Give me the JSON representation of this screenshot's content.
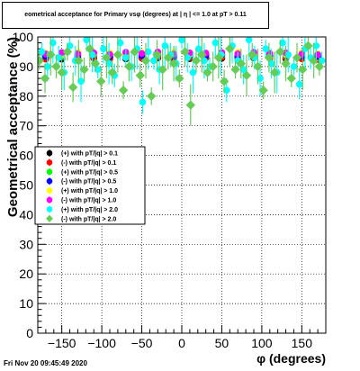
{
  "chart_data": {
    "type": "scatter",
    "title": "eometrical acceptance for Primary vsφ (degrees) at | η | <= 1.0 at pT > 0.11",
    "xlabel": "φ (degrees)",
    "ylabel": "Geometrical acceptance (%)",
    "xlim": [
      -180,
      180
    ],
    "ylim": [
      0,
      100
    ],
    "xticks": [
      -150,
      -100,
      -50,
      0,
      50,
      100,
      150
    ],
    "yticks": [
      0,
      10,
      20,
      30,
      40,
      50,
      60,
      70,
      80,
      90,
      100
    ],
    "grid": true,
    "legend_position": "middle-left",
    "series": [
      {
        "name": "(+) with pT/|q| > 0.1",
        "color": "#000000",
        "marker": "circle",
        "x": [
          -170,
          -150,
          -130,
          -110,
          -90,
          -70,
          -50,
          -30,
          -10,
          10,
          30,
          50,
          70,
          90,
          110,
          130,
          150,
          170
        ],
        "y": [
          93,
          92.5,
          93,
          92.8,
          93.2,
          92.6,
          93,
          92.9,
          93.1,
          92.7,
          93,
          92.8,
          93.2,
          92.9,
          93,
          92.6,
          93.1,
          92.8
        ]
      },
      {
        "name": "(-) with pT/|q| > 0.1",
        "color": "#ff0000",
        "marker": "circle",
        "x": [
          -170,
          -150,
          -130,
          -110,
          -90,
          -70,
          -50,
          -30,
          -10,
          10,
          30,
          50,
          70,
          90,
          110,
          130,
          150,
          170
        ],
        "y": [
          92.5,
          93.2,
          92.7,
          93,
          92.6,
          93.1,
          92.8,
          93.2,
          92.6,
          93,
          92.9,
          93.1,
          92.7,
          93.2,
          92.8,
          93,
          92.6,
          92.4
        ]
      },
      {
        "name": "(+) with pT/|q| > 0.5",
        "color": "#00ff00",
        "marker": "circle",
        "x": [
          -170,
          -150,
          -130,
          -110,
          -90,
          -70,
          -50,
          -30,
          -10,
          10,
          30,
          50,
          70,
          90,
          110,
          130,
          150,
          170
        ],
        "y": [
          94,
          93.5,
          94.2,
          93.8,
          94.1,
          93.6,
          94,
          93.9,
          94.3,
          93.7,
          94,
          93.8,
          94.2,
          93.9,
          94,
          93.6,
          94.1,
          93.8
        ]
      },
      {
        "name": "(-) with pT/|q| > 0.5",
        "color": "#0000ff",
        "marker": "circle",
        "x": [
          -170,
          -150,
          -130,
          -110,
          -90,
          -70,
          -50,
          -30,
          -10,
          10,
          30,
          50,
          70,
          90,
          110,
          130,
          150,
          170
        ],
        "y": [
          93.5,
          94,
          93.6,
          93.9,
          93.4,
          94,
          93.7,
          94.1,
          93.5,
          93.9,
          93.8,
          94,
          93.6,
          94.1,
          93.7,
          93.9,
          93.5,
          93.2
        ]
      },
      {
        "name": "(+) with pT/|q| > 1.0",
        "color": "#ffff00",
        "marker": "circle",
        "x": [
          -170,
          -150,
          -130,
          -110,
          -90,
          -70,
          -50,
          -30,
          -10,
          10,
          30,
          50,
          70,
          90,
          110,
          130,
          150,
          170
        ],
        "y": [
          94.5,
          94,
          94.8,
          94.2,
          94.6,
          94.1,
          94.7,
          94.3,
          94.9,
          94.2,
          94.6,
          94.4,
          94.8,
          94.3,
          94.6,
          94.1,
          94.7,
          94.3
        ]
      },
      {
        "name": "(-) with pT/|q| > 1.0",
        "color": "#ff00ff",
        "marker": "circle",
        "x": [
          -170,
          -150,
          -130,
          -110,
          -90,
          -70,
          -50,
          -30,
          -10,
          10,
          30,
          50,
          70,
          90,
          110,
          130,
          150,
          170
        ],
        "y": [
          94.2,
          94.7,
          94.3,
          94.6,
          94.1,
          94.8,
          94.4,
          94.9,
          94.2,
          94.6,
          94.5,
          94.7,
          94.3,
          94.8,
          94.4,
          94.6,
          94.2,
          94
        ]
      },
      {
        "name": "(+) with pT/|q| > 2.0",
        "color": "#00ffff",
        "marker": "circle",
        "x": [
          -175,
          -168,
          -161,
          -154,
          -147,
          -140,
          -133,
          -126,
          -119,
          -112,
          -105,
          -98,
          -91,
          -84,
          -77,
          -70,
          -63,
          -56,
          -49,
          -42,
          -35,
          -28,
          -21,
          -14,
          -7,
          0,
          7,
          14,
          21,
          28,
          35,
          42,
          49,
          56,
          63,
          70,
          77,
          84,
          91,
          98,
          105,
          112,
          119,
          126,
          133,
          140,
          147,
          154,
          161,
          168,
          175
        ],
        "y": [
          95,
          90,
          98,
          93,
          88,
          97,
          92,
          85,
          99,
          94,
          89,
          96,
          91,
          87,
          98,
          93,
          90,
          96,
          78,
          95,
          92,
          89,
          97,
          94,
          91,
          99,
          93,
          88,
          96,
          92,
          90,
          98,
          94,
          82,
          97,
          92,
          89,
          99,
          93,
          86,
          96,
          91,
          88,
          98,
          94,
          90,
          84,
          96,
          93,
          97,
          92
        ]
      },
      {
        "name": "(-) with pT/|q| > 2.0",
        "color": "#66cc55",
        "marker": "diamond",
        "x": [
          -178,
          -171,
          -164,
          -157,
          -150,
          -143,
          -136,
          -129,
          -122,
          -115,
          -108,
          -101,
          -94,
          -87,
          -80,
          -73,
          -66,
          -59,
          -52,
          -45,
          -38,
          -31,
          -24,
          -17,
          -10,
          -3,
          4,
          11,
          18,
          25,
          32,
          39,
          46,
          53,
          60,
          67,
          74,
          81,
          88,
          95,
          102,
          109,
          116,
          123,
          130,
          137,
          144,
          151,
          158,
          165,
          172
        ],
        "y": [
          92,
          86,
          94,
          90,
          88,
          95,
          83,
          92,
          89,
          96,
          91,
          85,
          93,
          88,
          94,
          82,
          90,
          95,
          87,
          92,
          80,
          94,
          89,
          93,
          91,
          86,
          95,
          77,
          92,
          94,
          88,
          90,
          93,
          85,
          96,
          89,
          91,
          87,
          94,
          90,
          82,
          93,
          88,
          95,
          91,
          86,
          93,
          89,
          97,
          92,
          90
        ]
      }
    ]
  },
  "footer_text": "Fri Nov 20 09:45:49 2020"
}
